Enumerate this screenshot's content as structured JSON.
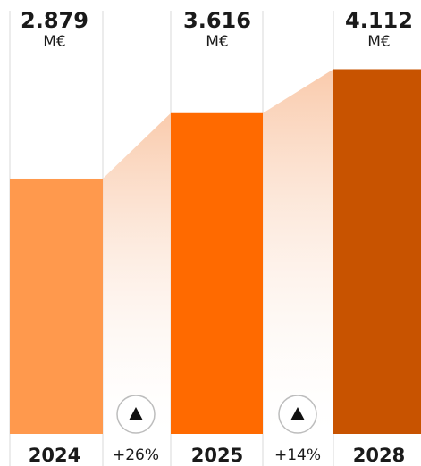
{
  "chart_data": {
    "type": "bar",
    "categories": [
      "2024",
      "2025",
      "2028"
    ],
    "values": [
      2879,
      3616,
      4112
    ],
    "value_labels": [
      "2.879",
      "3.616",
      "4.112"
    ],
    "unit": "M€",
    "growth": [
      {
        "label": "+26%",
        "icon": "triangle-up-icon"
      },
      {
        "label": "+14%",
        "icon": "triangle-up-icon"
      }
    ],
    "colors": [
      "#FF994D",
      "#FF6A00",
      "#C85300"
    ],
    "connector_color": "#F9C8A8",
    "divider_color": "#D9D9D9",
    "ylim": [
      0,
      4600
    ]
  }
}
